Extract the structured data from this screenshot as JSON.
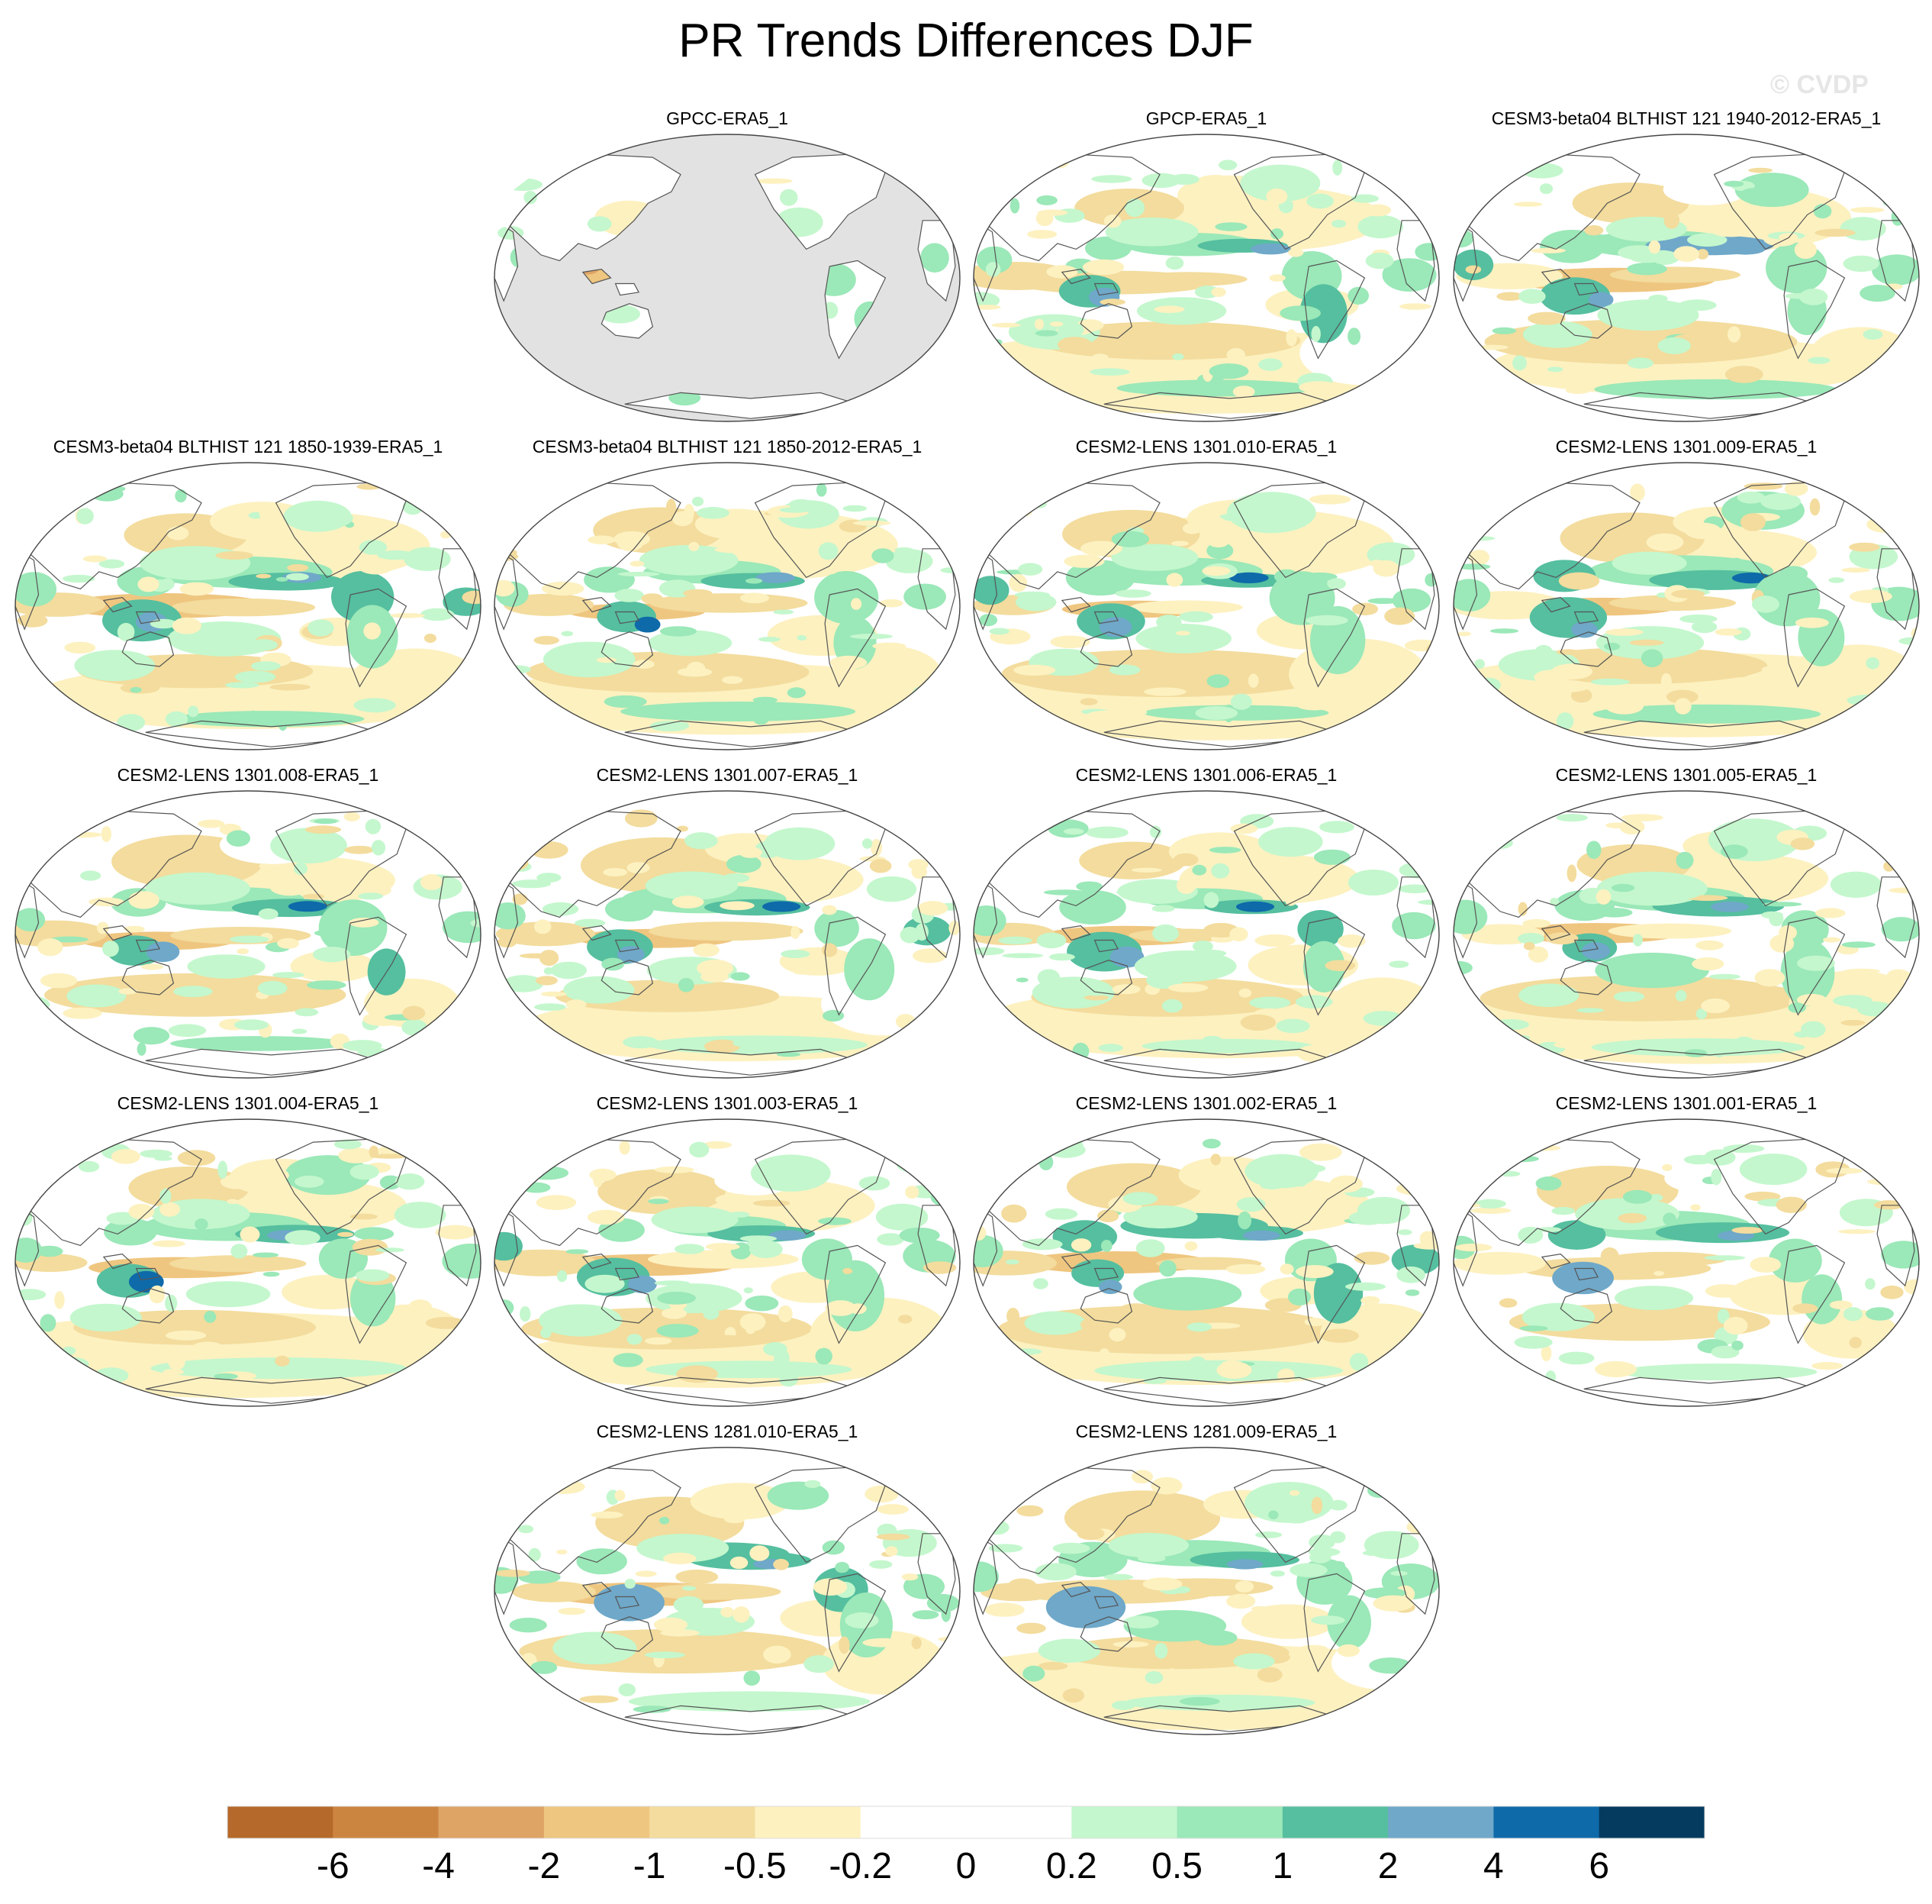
{
  "title": "PR Trends Differences DJF",
  "watermark": "© CVDP",
  "panels": [
    {
      "title": "GPCC-ERA5_1",
      "row": 0,
      "col": 1,
      "land_only": true
    },
    {
      "title": "GPCP-ERA5_1",
      "row": 0,
      "col": 2,
      "land_only": false
    },
    {
      "title": "CESM3-beta04 BLTHIST 121 1940-2012-ERA5_1",
      "row": 0,
      "col": 3,
      "land_only": false
    },
    {
      "title": "CESM3-beta04 BLTHIST 121 1850-1939-ERA5_1",
      "row": 1,
      "col": 0,
      "land_only": false
    },
    {
      "title": "CESM3-beta04 BLTHIST 121 1850-2012-ERA5_1",
      "row": 1,
      "col": 1,
      "land_only": false
    },
    {
      "title": "CESM2-LENS 1301.010-ERA5_1",
      "row": 1,
      "col": 2,
      "land_only": false
    },
    {
      "title": "CESM2-LENS 1301.009-ERA5_1",
      "row": 1,
      "col": 3,
      "land_only": false
    },
    {
      "title": "CESM2-LENS 1301.008-ERA5_1",
      "row": 2,
      "col": 0,
      "land_only": false
    },
    {
      "title": "CESM2-LENS 1301.007-ERA5_1",
      "row": 2,
      "col": 1,
      "land_only": false
    },
    {
      "title": "CESM2-LENS 1301.006-ERA5_1",
      "row": 2,
      "col": 2,
      "land_only": false
    },
    {
      "title": "CESM2-LENS 1301.005-ERA5_1",
      "row": 2,
      "col": 3,
      "land_only": false
    },
    {
      "title": "CESM2-LENS 1301.004-ERA5_1",
      "row": 3,
      "col": 0,
      "land_only": false
    },
    {
      "title": "CESM2-LENS 1301.003-ERA5_1",
      "row": 3,
      "col": 1,
      "land_only": false
    },
    {
      "title": "CESM2-LENS 1301.002-ERA5_1",
      "row": 3,
      "col": 2,
      "land_only": false
    },
    {
      "title": "CESM2-LENS 1301.001-ERA5_1",
      "row": 3,
      "col": 3,
      "land_only": false
    },
    {
      "title": "CESM2-LENS 1281.010-ERA5_1",
      "row": 4,
      "col": 1,
      "land_only": false
    },
    {
      "title": "CESM2-LENS 1281.009-ERA5_1",
      "row": 4,
      "col": 2,
      "land_only": false
    }
  ],
  "chart_data": {
    "type": "heatmap",
    "title": "PR Trends Differences DJF",
    "projection": "Robinson, Pacific-centered",
    "season": "DJF",
    "colorbar": {
      "labels": [
        "-6",
        "-4",
        "-2",
        "-1",
        "-0.5",
        "-0.2",
        "0",
        "0.2",
        "0.5",
        "1",
        "2",
        "4",
        "6"
      ],
      "levels": [
        -6,
        -4,
        -2,
        -1,
        -0.5,
        -0.2,
        0,
        0.2,
        0.5,
        1,
        2,
        4,
        6
      ],
      "colors": [
        "#b5692a",
        "#cc8540",
        "#dea466",
        "#efc680",
        "#f3dc9d",
        "#fdf1c0",
        "#ffffff",
        "#ffffff",
        "#c4f7cd",
        "#9be8b8",
        "#55bf9f",
        "#6fa8c9",
        "#0e6aa9",
        "#053b5f"
      ]
    },
    "ocean_mask_color": "#e2e2e2"
  }
}
